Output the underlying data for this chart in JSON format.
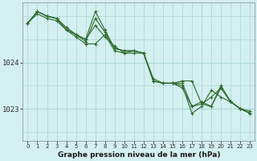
{
  "title": "Graphe pression niveau de la mer (hPa)",
  "background_color": "#d4efef",
  "grid_color": "#afd8d8",
  "line_color": "#2d6a2d",
  "marker_color": "#2d6a2d",
  "yticks": [
    1023,
    1024
  ],
  "ylim": [
    1022.3,
    1025.3
  ],
  "xlim": [
    -0.5,
    23.5
  ],
  "xticks": [
    0,
    1,
    2,
    3,
    4,
    5,
    6,
    7,
    8,
    9,
    10,
    11,
    12,
    13,
    14,
    15,
    16,
    17,
    18,
    19,
    20,
    21,
    22,
    23
  ],
  "series": [
    [
      1024.85,
      1025.05,
      1024.95,
      1024.9,
      1024.7,
      1024.6,
      1024.5,
      1024.8,
      1024.55,
      1024.35,
      1024.2,
      1024.2,
      1024.2,
      1023.65,
      1023.55,
      1023.55,
      1023.45,
      1023.05,
      1023.15,
      1023.05,
      1023.45,
      1023.15,
      1023.0,
      1022.95
    ],
    [
      1024.85,
      1025.1,
      1025.0,
      1024.95,
      1024.75,
      1024.6,
      1024.5,
      1025.1,
      1024.7,
      1024.3,
      1024.25,
      1024.25,
      1024.2,
      1023.6,
      1023.55,
      1023.55,
      1023.5,
      1022.9,
      1023.05,
      1023.4,
      1023.25,
      1023.15,
      1023.0,
      1022.9
    ],
    [
      1024.85,
      1025.1,
      1025.0,
      1024.95,
      1024.7,
      1024.55,
      1024.4,
      1024.4,
      1024.6,
      1024.25,
      1024.2,
      1024.25,
      1024.2,
      1023.6,
      1023.55,
      1023.55,
      1023.6,
      1023.6,
      1023.1,
      1023.05,
      1023.5,
      1023.15,
      1023.0,
      1022.9
    ],
    [
      1024.85,
      1025.1,
      1025.0,
      1024.95,
      1024.75,
      1024.6,
      1024.45,
      1024.95,
      1024.65,
      1024.3,
      1024.25,
      1024.25,
      1024.2,
      1023.6,
      1023.55,
      1023.55,
      1023.55,
      1023.05,
      1023.1,
      1023.25,
      1023.45,
      1023.15,
      1023.0,
      1022.9
    ]
  ]
}
